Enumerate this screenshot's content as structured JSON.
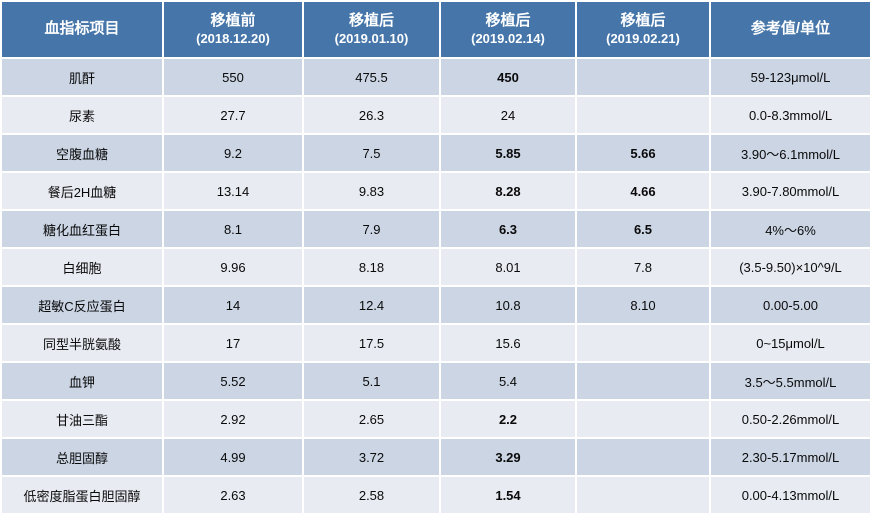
{
  "chart_data": {
    "type": "table",
    "columns": [
      {
        "label": "血指标项目",
        "sublabel": ""
      },
      {
        "label": "移植前",
        "sublabel": "(2018.12.20)"
      },
      {
        "label": "移植后",
        "sublabel": "(2019.01.10)"
      },
      {
        "label": "移植后",
        "sublabel": "(2019.02.14)"
      },
      {
        "label": "移植后",
        "sublabel": "(2019.02.21)"
      },
      {
        "label": "参考值/单位",
        "sublabel": ""
      }
    ],
    "rows": [
      {
        "name": "肌酐",
        "values": [
          {
            "text": "550",
            "red": false
          },
          {
            "text": "475.5",
            "red": false
          },
          {
            "text": "450",
            "red": true
          },
          {
            "text": "",
            "red": false
          }
        ],
        "reference": "59-123μmol/L"
      },
      {
        "name": "尿素",
        "values": [
          {
            "text": "27.7",
            "red": false
          },
          {
            "text": "26.3",
            "red": false
          },
          {
            "text": "24",
            "red": false
          },
          {
            "text": "",
            "red": false
          }
        ],
        "reference": "0.0-8.3mmol/L"
      },
      {
        "name": "空腹血糖",
        "values": [
          {
            "text": "9.2",
            "red": false
          },
          {
            "text": "7.5",
            "red": false
          },
          {
            "text": "5.85",
            "red": true
          },
          {
            "text": "5.66",
            "red": true
          }
        ],
        "reference": "3.90～6.1mmol/L"
      },
      {
        "name": "餐后2H血糖",
        "values": [
          {
            "text": "13.14",
            "red": false
          },
          {
            "text": "9.83",
            "red": false
          },
          {
            "text": "8.28",
            "red": true
          },
          {
            "text": "4.66",
            "red": true
          }
        ],
        "reference": "3.90-7.80mmol/L"
      },
      {
        "name": "糖化血红蛋白",
        "values": [
          {
            "text": "8.1",
            "red": false
          },
          {
            "text": "7.9",
            "red": false
          },
          {
            "text": "6.3",
            "red": true
          },
          {
            "text": "6.5",
            "red": true
          }
        ],
        "reference": "4%～6%"
      },
      {
        "name": "白细胞",
        "values": [
          {
            "text": "9.96",
            "red": false
          },
          {
            "text": "8.18",
            "red": false
          },
          {
            "text": "8.01",
            "red": false
          },
          {
            "text": "7.8",
            "red": false
          }
        ],
        "reference": "(3.5-9.50)×10^9/L"
      },
      {
        "name": "超敏C反应蛋白",
        "values": [
          {
            "text": "14",
            "red": false
          },
          {
            "text": "12.4",
            "red": false
          },
          {
            "text": "10.8",
            "red": false
          },
          {
            "text": "8.10",
            "red": false
          }
        ],
        "reference": "0.00-5.00"
      },
      {
        "name": "同型半胱氨酸",
        "values": [
          {
            "text": "17",
            "red": false
          },
          {
            "text": "17.5",
            "red": false
          },
          {
            "text": "15.6",
            "red": false
          },
          {
            "text": "",
            "red": false
          }
        ],
        "reference": "0~15μmol/L"
      },
      {
        "name": "血钾",
        "values": [
          {
            "text": "5.52",
            "red": false
          },
          {
            "text": "5.1",
            "red": false
          },
          {
            "text": "5.4",
            "red": false
          },
          {
            "text": "",
            "red": false
          }
        ],
        "reference": "3.5～5.5mmol/L"
      },
      {
        "name": "甘油三酯",
        "values": [
          {
            "text": "2.92",
            "red": false
          },
          {
            "text": "2.65",
            "red": false
          },
          {
            "text": "2.2",
            "red": true
          },
          {
            "text": "",
            "red": false
          }
        ],
        "reference": "0.50-2.26mmol/L"
      },
      {
        "name": "总胆固醇",
        "values": [
          {
            "text": "4.99",
            "red": false
          },
          {
            "text": "3.72",
            "red": false
          },
          {
            "text": "3.29",
            "red": true
          },
          {
            "text": "",
            "red": false
          }
        ],
        "reference": "2.30-5.17mmol/L"
      },
      {
        "name": "低密度脂蛋白胆固醇",
        "values": [
          {
            "text": "2.63",
            "red": false
          },
          {
            "text": "2.58",
            "red": false
          },
          {
            "text": "1.54",
            "red": true
          },
          {
            "text": "",
            "red": false
          }
        ],
        "reference": "0.00-4.13mmol/L"
      }
    ],
    "colors": {
      "header_bg": "#4575A9",
      "header_text": "#FFFFFF",
      "row_odd_bg": "#CBD5E4",
      "row_even_bg": "#E8EBF2",
      "cell_text": "#0A0A0A",
      "highlight_text": "#FF0000"
    }
  }
}
